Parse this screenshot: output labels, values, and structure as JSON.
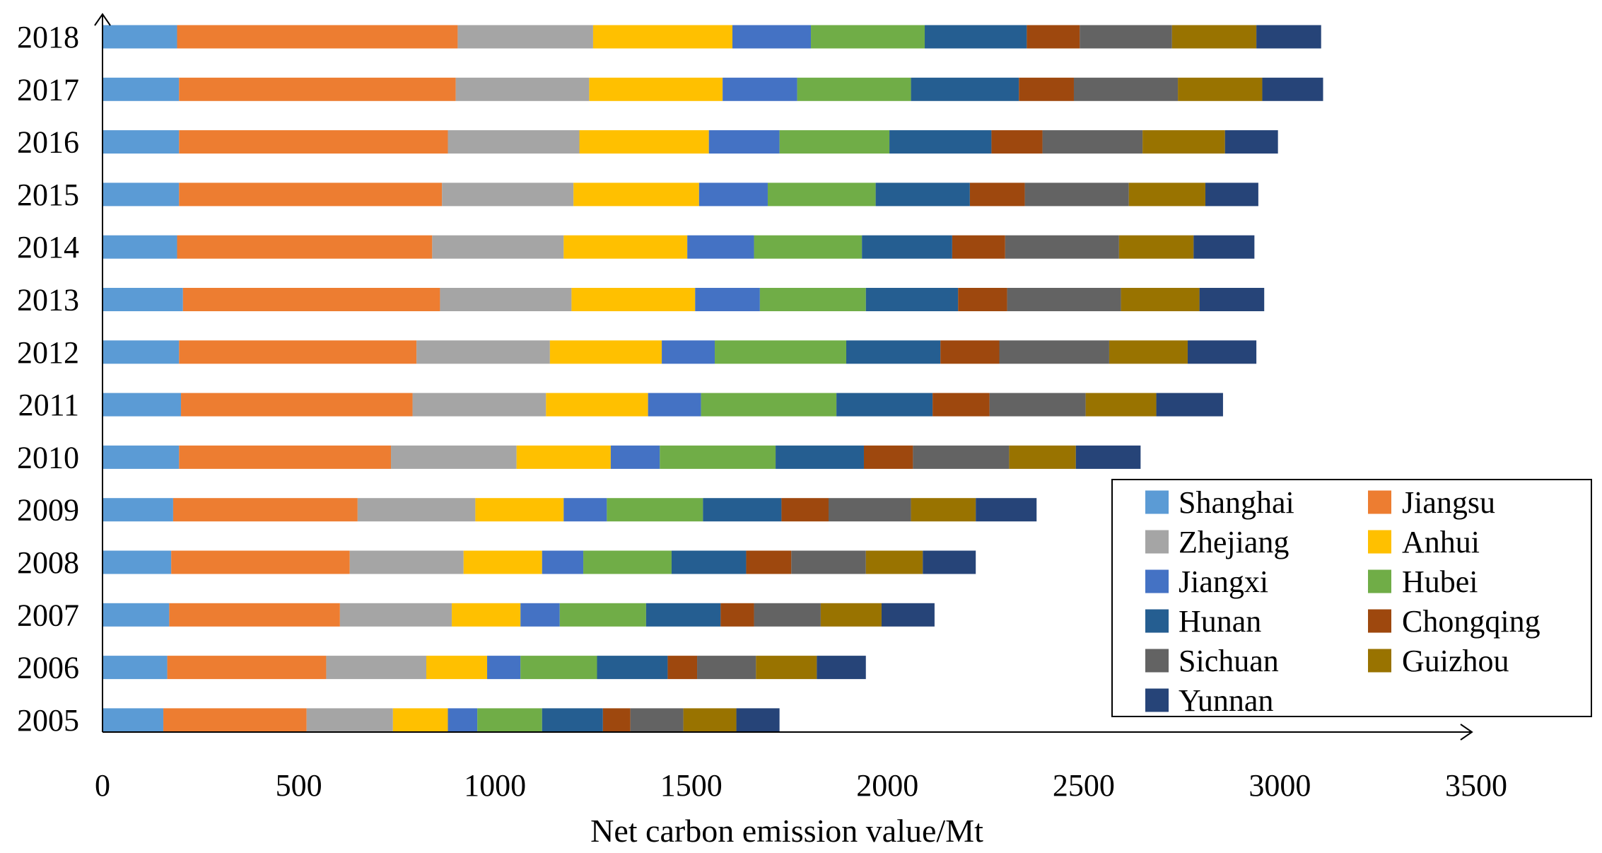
{
  "chart_data": {
    "type": "bar",
    "orientation": "horizontal",
    "stacked": true,
    "title": "",
    "xlabel": "Net carbon emission value/Mt",
    "ylabel": "",
    "xlim": [
      0,
      3500
    ],
    "xticks": [
      "0",
      "500",
      "1000",
      "1500",
      "2000",
      "2500",
      "3000",
      "3500"
    ],
    "grid": false,
    "legend_position": "bottom-right",
    "categories": [
      "2018",
      "2017",
      "2016",
      "2015",
      "2014",
      "2013",
      "2012",
      "2011",
      "2010",
      "2009",
      "2008",
      "2007",
      "2006",
      "2005"
    ],
    "series": [
      {
        "name": "Shanghai",
        "color": "#5B9BD5",
        "values": [
          190,
          195,
          195,
          195,
          190,
          205,
          195,
          200,
          195,
          180,
          175,
          170,
          165,
          155
        ]
      },
      {
        "name": "Jiangsu",
        "color": "#ED7D31",
        "values": [
          715,
          705,
          685,
          670,
          650,
          655,
          605,
          590,
          540,
          470,
          455,
          435,
          405,
          365
        ]
      },
      {
        "name": "Zhejiang",
        "color": "#A5A5A5",
        "values": [
          345,
          340,
          335,
          335,
          335,
          335,
          340,
          340,
          320,
          300,
          290,
          285,
          255,
          220
        ]
      },
      {
        "name": "Anhui",
        "color": "#FFC000",
        "values": [
          355,
          340,
          330,
          320,
          315,
          315,
          285,
          260,
          240,
          225,
          200,
          175,
          155,
          140
        ]
      },
      {
        "name": "Jiangxi",
        "color": "#4472C4",
        "values": [
          200,
          190,
          180,
          175,
          170,
          165,
          135,
          135,
          125,
          110,
          105,
          100,
          85,
          75
        ]
      },
      {
        "name": "Hubei",
        "color": "#70AD47",
        "values": [
          290,
          290,
          280,
          275,
          275,
          270,
          335,
          345,
          295,
          245,
          225,
          220,
          195,
          165
        ]
      },
      {
        "name": "Hunan",
        "color": "#255E91",
        "values": [
          260,
          275,
          260,
          240,
          230,
          235,
          240,
          245,
          225,
          200,
          190,
          190,
          180,
          155
        ]
      },
      {
        "name": "Chongqing",
        "color": "#9E480E",
        "values": [
          135,
          140,
          130,
          140,
          135,
          125,
          150,
          145,
          125,
          120,
          115,
          85,
          75,
          70
        ]
      },
      {
        "name": "Sichuan",
        "color": "#636363",
        "values": [
          235,
          265,
          255,
          265,
          290,
          290,
          280,
          245,
          245,
          210,
          190,
          170,
          150,
          135
        ]
      },
      {
        "name": "Guizhou",
        "color": "#997300",
        "values": [
          215,
          215,
          210,
          195,
          190,
          200,
          200,
          180,
          170,
          165,
          145,
          155,
          155,
          135
        ]
      },
      {
        "name": "Yunnan",
        "color": "#264478",
        "values": [
          165,
          155,
          135,
          135,
          155,
          165,
          175,
          170,
          165,
          155,
          135,
          135,
          125,
          110
        ]
      }
    ]
  }
}
